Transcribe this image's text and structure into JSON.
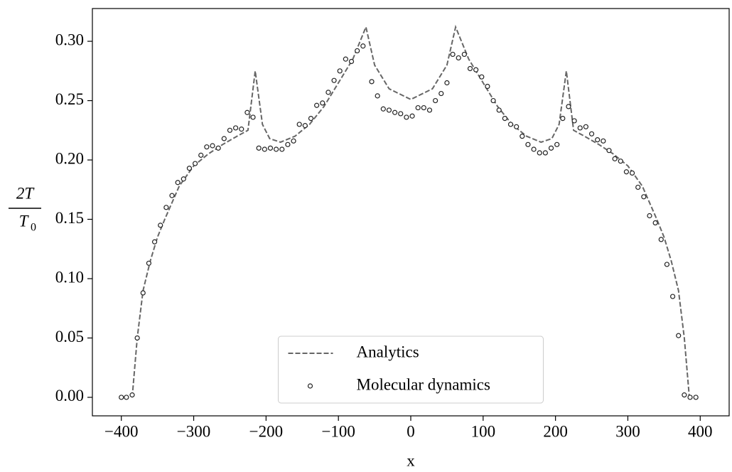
{
  "chart_data": {
    "type": "line",
    "xlabel": "x",
    "ylabel": {
      "numerator": "2T",
      "denominator": "T",
      "subscript": "0"
    },
    "xlim": [
      -440,
      440
    ],
    "ylim": [
      -0.0156,
      0.3276
    ],
    "xticks": [
      {
        "value": -400,
        "label": "−400"
      },
      {
        "value": -300,
        "label": "−300"
      },
      {
        "value": -200,
        "label": "−200"
      },
      {
        "value": -100,
        "label": "−100"
      },
      {
        "value": 0,
        "label": "0"
      },
      {
        "value": 100,
        "label": "100"
      },
      {
        "value": 200,
        "label": "200"
      },
      {
        "value": 300,
        "label": "300"
      },
      {
        "value": 400,
        "label": "400"
      }
    ],
    "yticks": [
      {
        "value": 0,
        "label": "0.00"
      },
      {
        "value": 0.05,
        "label": "0.05"
      },
      {
        "value": 0.1,
        "label": "0.10"
      },
      {
        "value": 0.15,
        "label": "0.15"
      },
      {
        "value": 0.2,
        "label": "0.20"
      },
      {
        "value": 0.25,
        "label": "0.25"
      },
      {
        "value": 0.3,
        "label": "0.30"
      }
    ],
    "legend": "lower center",
    "series": [
      {
        "name": "Analytics",
        "color": "#666666",
        "linestyle": "dashed",
        "x": [
          -385,
          -378,
          -370,
          -360,
          -350,
          -340,
          -320,
          -300,
          -280,
          -260,
          -240,
          -225,
          -215,
          -205,
          -195,
          -180,
          -160,
          -140,
          -120,
          -100,
          -80,
          -62,
          -50,
          -30,
          0,
          30,
          50,
          62,
          80,
          100,
          120,
          140,
          160,
          180,
          195,
          205,
          215,
          225,
          240,
          260,
          280,
          300,
          320,
          340,
          350,
          360,
          370,
          378,
          385
        ],
        "values": [
          0,
          0.05,
          0.09,
          0.115,
          0.135,
          0.15,
          0.178,
          0.195,
          0.205,
          0.213,
          0.22,
          0.225,
          0.275,
          0.23,
          0.218,
          0.215,
          0.22,
          0.23,
          0.245,
          0.265,
          0.285,
          0.312,
          0.28,
          0.26,
          0.251,
          0.26,
          0.28,
          0.312,
          0.285,
          0.265,
          0.245,
          0.23,
          0.22,
          0.215,
          0.218,
          0.23,
          0.275,
          0.225,
          0.22,
          0.213,
          0.205,
          0.195,
          0.178,
          0.15,
          0.135,
          0.115,
          0.09,
          0.05,
          0
        ]
      },
      {
        "name": "Molecular dynamics",
        "color": "#222222",
        "marker": "o",
        "x": [
          -400,
          -393,
          -385,
          -378,
          -370,
          -362,
          -354,
          -346,
          -338,
          -330,
          -322,
          -314,
          -306,
          -298,
          -290,
          -282,
          -274,
          -266,
          -258,
          -250,
          -242,
          -234,
          -226,
          -218,
          -210,
          -202,
          -194,
          -186,
          -178,
          -170,
          -162,
          -154,
          -146,
          -138,
          -130,
          -122,
          -114,
          -106,
          -98,
          -90,
          -82,
          -74,
          -66,
          -54,
          -46,
          -38,
          -30,
          -22,
          -14,
          -6,
          2,
          10,
          18,
          26,
          34,
          42,
          50,
          58,
          66,
          74,
          82,
          90,
          98,
          106,
          114,
          122,
          130,
          138,
          146,
          154,
          162,
          170,
          178,
          186,
          194,
          202,
          210,
          218,
          226,
          234,
          242,
          250,
          258,
          266,
          274,
          282,
          290,
          298,
          306,
          314,
          322,
          330,
          338,
          346,
          354,
          362,
          370,
          378,
          386,
          394
        ],
        "values": [
          0,
          0,
          0.002,
          0.05,
          0.088,
          0.113,
          0.131,
          0.145,
          0.16,
          0.17,
          0.181,
          0.184,
          0.193,
          0.197,
          0.204,
          0.211,
          0.212,
          0.21,
          0.218,
          0.225,
          0.227,
          0.226,
          0.24,
          0.236,
          0.21,
          0.209,
          0.21,
          0.209,
          0.209,
          0.213,
          0.216,
          0.23,
          0.229,
          0.235,
          0.246,
          0.248,
          0.257,
          0.267,
          0.275,
          0.285,
          0.283,
          0.292,
          0.296,
          0.266,
          0.254,
          0.243,
          0.242,
          0.24,
          0.239,
          0.236,
          0.237,
          0.244,
          0.244,
          0.242,
          0.25,
          0.256,
          0.265,
          0.289,
          0.286,
          0.289,
          0.277,
          0.276,
          0.27,
          0.262,
          0.25,
          0.242,
          0.235,
          0.23,
          0.228,
          0.22,
          0.213,
          0.209,
          0.206,
          0.206,
          0.21,
          0.213,
          0.235,
          0.245,
          0.233,
          0.227,
          0.228,
          0.222,
          0.217,
          0.216,
          0.208,
          0.201,
          0.199,
          0.19,
          0.189,
          0.177,
          0.169,
          0.153,
          0.147,
          0.133,
          0.112,
          0.085,
          0.052,
          0.002,
          0,
          0
        ]
      }
    ]
  }
}
